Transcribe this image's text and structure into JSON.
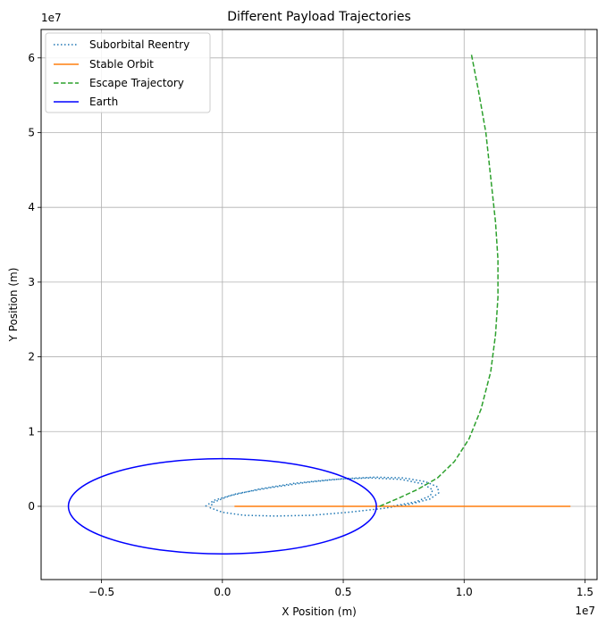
{
  "chart_data": {
    "type": "line",
    "title": "Different Payload Trajectories",
    "xlabel": "X Position (m)",
    "ylabel": "Y Position (m)",
    "x_offset_label": "1e7",
    "y_offset_label": "1e7",
    "xlim": [
      -7500000,
      15500000
    ],
    "ylim": [
      -9800000,
      63800000
    ],
    "xticks": [
      -5000000,
      0,
      5000000,
      10000000,
      15000000
    ],
    "xtick_labels": [
      "−0.5",
      "0.0",
      "0.5",
      "1.0",
      "1.5"
    ],
    "yticks": [
      0,
      10000000,
      20000000,
      30000000,
      40000000,
      50000000,
      60000000
    ],
    "ytick_labels": [
      "0",
      "1",
      "2",
      "3",
      "4",
      "5",
      "6"
    ],
    "grid": true,
    "legend_position": "upper-left",
    "series": [
      {
        "name": "Suborbital Reentry",
        "color": "#1f77b4",
        "linestyle": "dotted",
        "x": [
          -700000,
          -350000,
          600000,
          2000000,
          3500000,
          5000000,
          6300000,
          7500000,
          8400000,
          8900000,
          8950000,
          8600000,
          7800000,
          6600000,
          5200000,
          3700000,
          2200000,
          900000,
          0,
          -500000,
          -400000,
          300000,
          1500000,
          3000000,
          4600000,
          6100000,
          7400000,
          8300000,
          8700000,
          8600000,
          8000000,
          7000000
        ],
        "y": [
          0,
          800000,
          1700000,
          2500000,
          3200000,
          3700000,
          3900000,
          3800000,
          3300000,
          2600000,
          1800000,
          1000000,
          300000,
          -300000,
          -800000,
          -1200000,
          -1300000,
          -1200000,
          -800000,
          -200000,
          500000,
          1400000,
          2300000,
          3100000,
          3600000,
          3800000,
          3600000,
          3000000,
          2200000,
          1400000,
          600000,
          0
        ]
      },
      {
        "name": "Stable Orbit",
        "color": "#ff7f0e",
        "linestyle": "solid",
        "x": [
          500000,
          14400000
        ],
        "y": [
          0,
          0
        ]
      },
      {
        "name": "Escape Trajectory",
        "color": "#2ca02c",
        "linestyle": "dashed",
        "x": [
          6500000,
          7300000,
          8100000,
          8900000,
          9600000,
          10200000,
          10700000,
          11100000,
          11300000,
          11400000,
          11400000,
          11300000,
          11100000,
          10900000,
          10600000,
          10300000
        ],
        "y": [
          0,
          1100000,
          2300000,
          3800000,
          6000000,
          9000000,
          13000000,
          18000000,
          23000000,
          28000000,
          33000000,
          38000000,
          44000000,
          50000000,
          55500000,
          60500000
        ]
      },
      {
        "name": "Earth",
        "color": "#0000ff",
        "linestyle": "solid",
        "shape": "circle",
        "center": [
          0,
          0
        ],
        "radius": 6371000
      }
    ]
  }
}
